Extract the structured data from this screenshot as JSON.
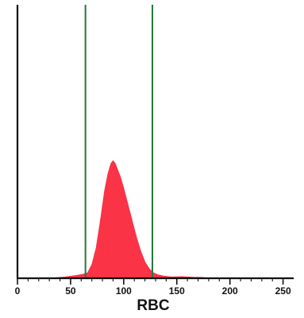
{
  "chart_data": {
    "type": "area",
    "title": "",
    "xlabel": "RBC",
    "ylabel": "",
    "xlim": [
      0,
      260
    ],
    "ylim": [
      0,
      1.0
    ],
    "xticks": [
      0,
      50,
      100,
      150,
      200,
      250
    ],
    "grid": false,
    "legend": "none",
    "gate_lines": [
      64,
      127
    ],
    "series": [
      {
        "x": [
          30,
          45,
          55,
          62,
          66,
          70,
          74,
          78,
          82,
          85,
          88,
          90,
          92,
          94,
          97,
          100,
          104,
          108,
          112,
          116,
          120,
          124,
          128,
          132,
          138,
          145,
          155,
          165,
          175,
          180
        ],
        "y": [
          0.0,
          0.005,
          0.01,
          0.015,
          0.02,
          0.05,
          0.11,
          0.21,
          0.32,
          0.38,
          0.42,
          0.43,
          0.42,
          0.4,
          0.37,
          0.33,
          0.27,
          0.21,
          0.15,
          0.1,
          0.06,
          0.035,
          0.02,
          0.013,
          0.008,
          0.005,
          0.006,
          0.004,
          0.003,
          0.0
        ]
      }
    ]
  },
  "colors": {
    "fill": "#fa3347",
    "gate_line": "#1f7a3a",
    "axis": "#111111",
    "background": "#ffffff"
  }
}
